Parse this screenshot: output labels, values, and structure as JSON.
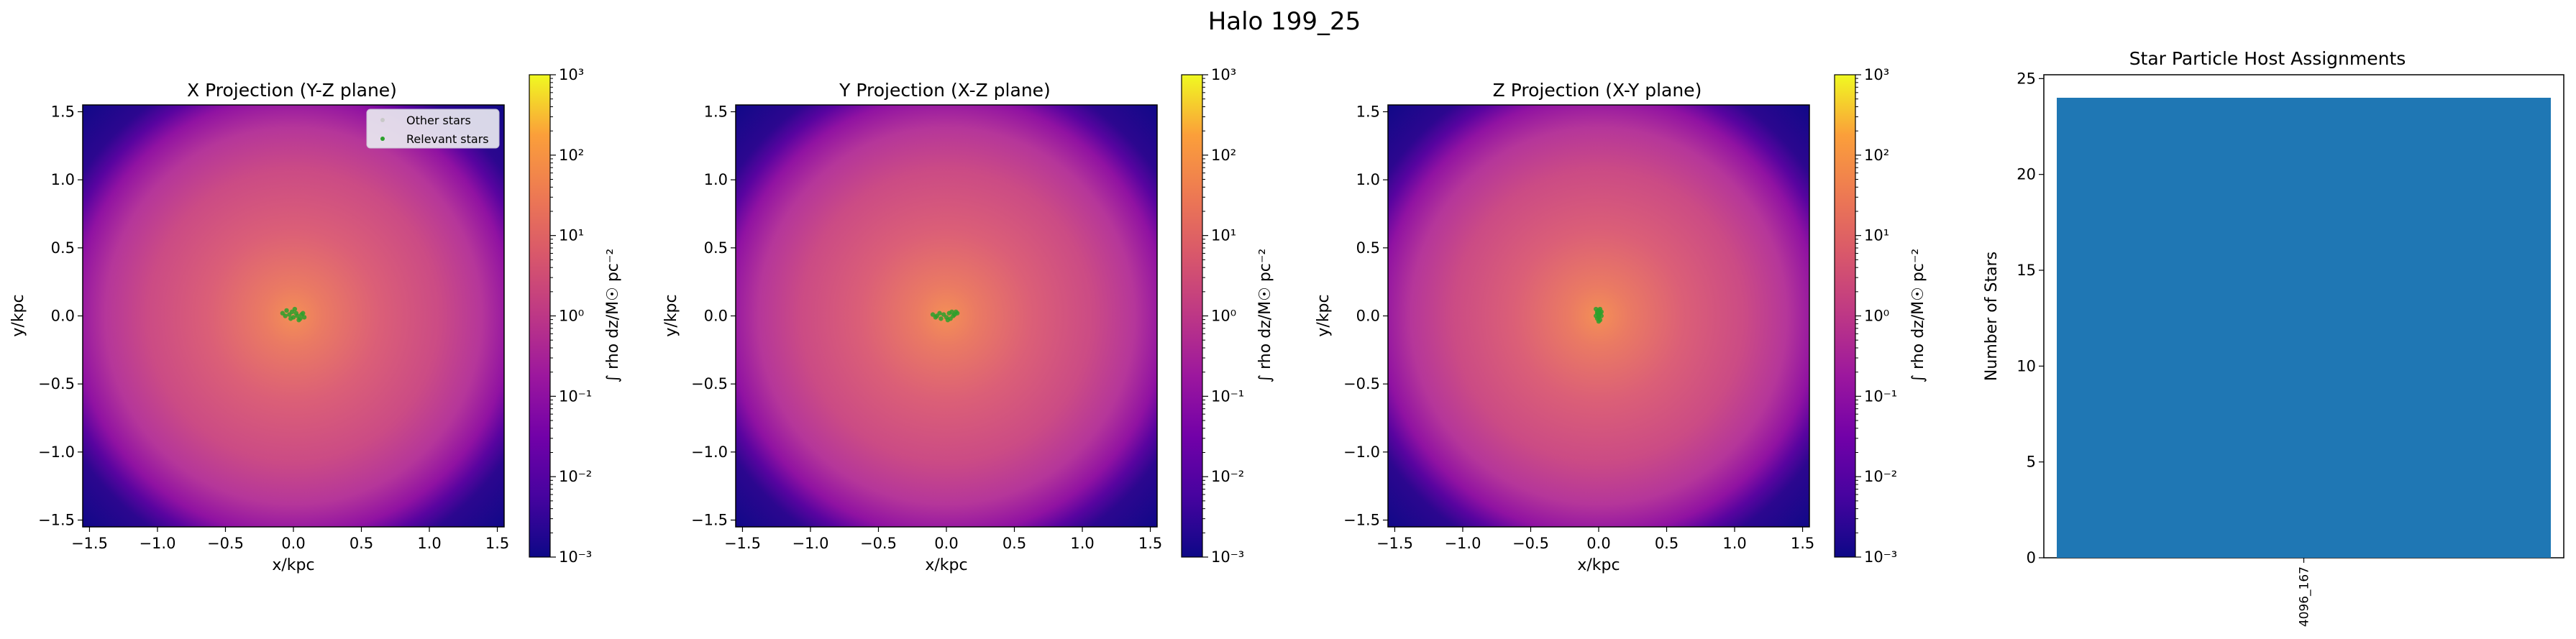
{
  "suptitle": "Halo 199_25",
  "colors": {
    "bar": "#1f77b4",
    "relevant_stars": "#2ca02c",
    "other_stars": "#c8c8c8",
    "legend_bg": "#e9e9f0"
  },
  "chart_data": [
    {
      "type": "heatmap",
      "title": "X Projection (Y-Z plane)",
      "xlabel": "x/kpc",
      "ylabel": "y/kpc",
      "xlim": [
        -1.55,
        1.55
      ],
      "ylim": [
        -1.55,
        1.55
      ],
      "xticks": [
        -1.5,
        -1.0,
        -0.5,
        0.0,
        0.5,
        1.0,
        1.5
      ],
      "yticks": [
        -1.5,
        -1.0,
        -0.5,
        0.0,
        0.5,
        1.0,
        1.5
      ],
      "colormap": "plasma",
      "colorbar": {
        "scale": "log",
        "range": [
          0.001,
          1000
        ],
        "tick_labels": [
          "10⁻³",
          "10⁻²",
          "10⁻¹",
          "10⁰",
          "10¹",
          "10²",
          "10³"
        ],
        "label": "∫ rho dz/M☉ pc⁻²"
      },
      "legend": {
        "location": "upper right",
        "entries": [
          "Other stars",
          "Relevant stars"
        ]
      },
      "relevant_stars": {
        "x": [
          -0.08,
          -0.05,
          -0.03,
          -0.01,
          0.0,
          0.02,
          0.03,
          0.05,
          0.06,
          0.08,
          -0.06,
          0.01,
          0.04,
          -0.02,
          0.07
        ],
        "y": [
          0.02,
          0.04,
          0.01,
          0.03,
          -0.01,
          0.02,
          0.0,
          -0.02,
          0.01,
          -0.01,
          0.0,
          0.05,
          -0.03,
          -0.02,
          0.02
        ]
      }
    },
    {
      "type": "heatmap",
      "title": "Y Projection (X-Z plane)",
      "xlabel": "x/kpc",
      "ylabel": "y/kpc",
      "xlim": [
        -1.55,
        1.55
      ],
      "ylim": [
        -1.55,
        1.55
      ],
      "xticks": [
        -1.5,
        -1.0,
        -0.5,
        0.0,
        0.5,
        1.0,
        1.5
      ],
      "yticks": [
        -1.5,
        -1.0,
        -0.5,
        0.0,
        0.5,
        1.0,
        1.5
      ],
      "colormap": "plasma",
      "colorbar": {
        "scale": "log",
        "range": [
          0.001,
          1000
        ],
        "tick_labels": [
          "10⁻³",
          "10⁻²",
          "10⁻¹",
          "10⁰",
          "10¹",
          "10²",
          "10³"
        ],
        "label": "∫ rho dz/M☉ pc⁻²"
      },
      "relevant_stars": {
        "x": [
          -0.1,
          -0.07,
          -0.05,
          -0.02,
          0.0,
          0.02,
          0.04,
          0.06,
          0.08,
          -0.04,
          0.01,
          0.05,
          0.07,
          -0.08,
          0.03
        ],
        "y": [
          0.01,
          0.0,
          0.02,
          0.01,
          -0.01,
          0.02,
          0.03,
          0.01,
          0.02,
          -0.02,
          -0.03,
          0.0,
          0.03,
          -0.01,
          -0.02
        ]
      }
    },
    {
      "type": "heatmap",
      "title": "Z Projection (X-Y plane)",
      "xlabel": "x/kpc",
      "ylabel": "y/kpc",
      "xlim": [
        -1.55,
        1.55
      ],
      "ylim": [
        -1.55,
        1.55
      ],
      "xticks": [
        -1.5,
        -1.0,
        -0.5,
        0.0,
        0.5,
        1.0,
        1.5
      ],
      "yticks": [
        -1.5,
        -1.0,
        -0.5,
        0.0,
        0.5,
        1.0,
        1.5
      ],
      "colormap": "plasma",
      "colorbar": {
        "scale": "log",
        "range": [
          0.001,
          1000
        ],
        "tick_labels": [
          "10⁻³",
          "10⁻²",
          "10⁻¹",
          "10⁰",
          "10¹",
          "10²",
          "10³"
        ],
        "label": "∫ rho dz/M☉ pc⁻²"
      },
      "relevant_stars": {
        "x": [
          -0.02,
          -0.01,
          0.0,
          0.01,
          0.02,
          0.0,
          -0.01,
          0.01,
          0.0,
          0.02,
          -0.02,
          0.0,
          0.01,
          -0.01,
          0.0
        ],
        "y": [
          0.05,
          0.03,
          0.04,
          0.02,
          0.0,
          -0.01,
          -0.02,
          -0.03,
          0.01,
          0.03,
          0.0,
          -0.04,
          0.05,
          0.02,
          0.0
        ]
      }
    },
    {
      "type": "bar",
      "title": "Star Particle Host Assignments",
      "xlabel": "",
      "ylabel": "Number of Stars",
      "categories": [
        "4096_167"
      ],
      "values": [
        24
      ],
      "ylim": [
        0,
        25.2
      ],
      "yticks": [
        0,
        5,
        10,
        15,
        20,
        25
      ]
    }
  ]
}
